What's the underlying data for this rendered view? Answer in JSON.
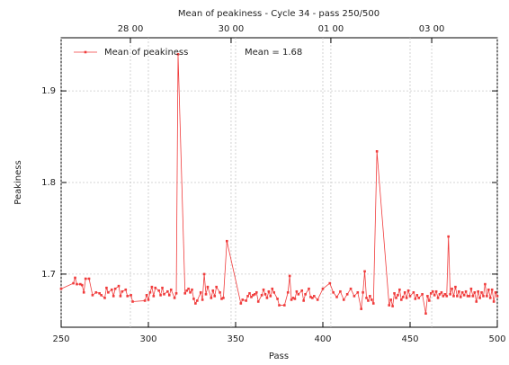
{
  "chart_data": {
    "type": "line",
    "title": "Mean of peakiness - Cycle 34 - pass 250/500",
    "x_label": "Pass",
    "y_label": "Peakiness",
    "annotation": "Mean = 1.68",
    "legend": "upper left",
    "grid": true,
    "xlim": [
      250,
      500
    ],
    "xticks": [
      250,
      300,
      350,
      400,
      450,
      500
    ],
    "ylim": [
      1.642,
      1.958
    ],
    "yticks": [
      1.7,
      1.8,
      1.9
    ],
    "x2ticks": [
      {
        "value": 289.7,
        "label": "28 00"
      },
      {
        "value": 347.4,
        "label": "30 00"
      },
      {
        "value": 404.6,
        "label": "01 00"
      },
      {
        "value": 462.4,
        "label": "03 00"
      }
    ],
    "series": [
      {
        "name": "Mean of peakiness",
        "color": "#f03c3c",
        "x": [
          250,
          257,
          258,
          259,
          261,
          262,
          263,
          264,
          266,
          268,
          270,
          272,
          273,
          275,
          276,
          277,
          279,
          280,
          281,
          283,
          284,
          285,
          287,
          288,
          290,
          291,
          298,
          299,
          300,
          301,
          302,
          303,
          304,
          306,
          307,
          308,
          309,
          311,
          312,
          313,
          315,
          316,
          317,
          321,
          322,
          323,
          324,
          325,
          326,
          327,
          328,
          330,
          331,
          332,
          333,
          334,
          336,
          337,
          338,
          339,
          341,
          342,
          343,
          345,
          353,
          354,
          356,
          357,
          358,
          359,
          360,
          361,
          362,
          363,
          365,
          366,
          367,
          368,
          369,
          370,
          371,
          372,
          374,
          375,
          378,
          380,
          381,
          382,
          383,
          384,
          385,
          386,
          388,
          389,
          390,
          392,
          393,
          394,
          395,
          397,
          400,
          404,
          406,
          408,
          410,
          412,
          414,
          416,
          418,
          420,
          422,
          423,
          424,
          425,
          426,
          427,
          428,
          429,
          431,
          438,
          439,
          440,
          441,
          442,
          443,
          444,
          445,
          446,
          447,
          448,
          449,
          450,
          452,
          453,
          454,
          455,
          457,
          459,
          460,
          461,
          462,
          463,
          464,
          465,
          466,
          467,
          468,
          469,
          470,
          471,
          472,
          473,
          474,
          475,
          476,
          477,
          478,
          479,
          480,
          481,
          482,
          483,
          484,
          485,
          486,
          487,
          488,
          489,
          490,
          491,
          492,
          493,
          494,
          495,
          496,
          497,
          498,
          499,
          500
        ],
        "values": [
          1.684,
          1.69,
          1.696,
          1.689,
          1.689,
          1.688,
          1.68,
          1.695,
          1.695,
          1.677,
          1.68,
          1.679,
          1.677,
          1.674,
          1.685,
          1.68,
          1.683,
          1.676,
          1.684,
          1.687,
          1.676,
          1.681,
          1.683,
          1.676,
          1.677,
          1.67,
          1.671,
          1.677,
          1.672,
          1.68,
          1.686,
          1.676,
          1.685,
          1.682,
          1.677,
          1.685,
          1.678,
          1.681,
          1.677,
          1.683,
          1.674,
          1.679,
          1.94,
          1.679,
          1.682,
          1.684,
          1.68,
          1.683,
          1.673,
          1.668,
          1.671,
          1.68,
          1.672,
          1.7,
          1.678,
          1.686,
          1.674,
          1.682,
          1.676,
          1.686,
          1.68,
          1.673,
          1.674,
          1.736,
          1.668,
          1.672,
          1.671,
          1.676,
          1.679,
          1.675,
          1.677,
          1.678,
          1.68,
          1.67,
          1.677,
          1.683,
          1.678,
          1.674,
          1.681,
          1.676,
          1.684,
          1.68,
          1.673,
          1.666,
          1.666,
          1.68,
          1.698,
          1.672,
          1.674,
          1.673,
          1.681,
          1.678,
          1.682,
          1.671,
          1.678,
          1.684,
          1.675,
          1.674,
          1.676,
          1.672,
          1.684,
          1.69,
          1.68,
          1.675,
          1.681,
          1.672,
          1.678,
          1.684,
          1.676,
          1.68,
          1.662,
          1.68,
          1.703,
          1.674,
          1.671,
          1.676,
          1.672,
          1.668,
          1.834,
          1.666,
          1.672,
          1.665,
          1.679,
          1.674,
          1.677,
          1.683,
          1.672,
          1.675,
          1.68,
          1.674,
          1.682,
          1.676,
          1.68,
          1.673,
          1.677,
          1.674,
          1.678,
          1.657,
          1.676,
          1.671,
          1.679,
          1.681,
          1.677,
          1.681,
          1.674,
          1.678,
          1.68,
          1.676,
          1.678,
          1.676,
          1.741,
          1.678,
          1.684,
          1.676,
          1.686,
          1.676,
          1.681,
          1.675,
          1.68,
          1.677,
          1.681,
          1.676,
          1.676,
          1.684,
          1.676,
          1.68,
          1.67,
          1.681,
          1.674,
          1.68,
          1.676,
          1.689,
          1.676,
          1.683,
          1.674,
          1.683,
          1.67,
          1.68,
          1.676
        ]
      }
    ]
  }
}
